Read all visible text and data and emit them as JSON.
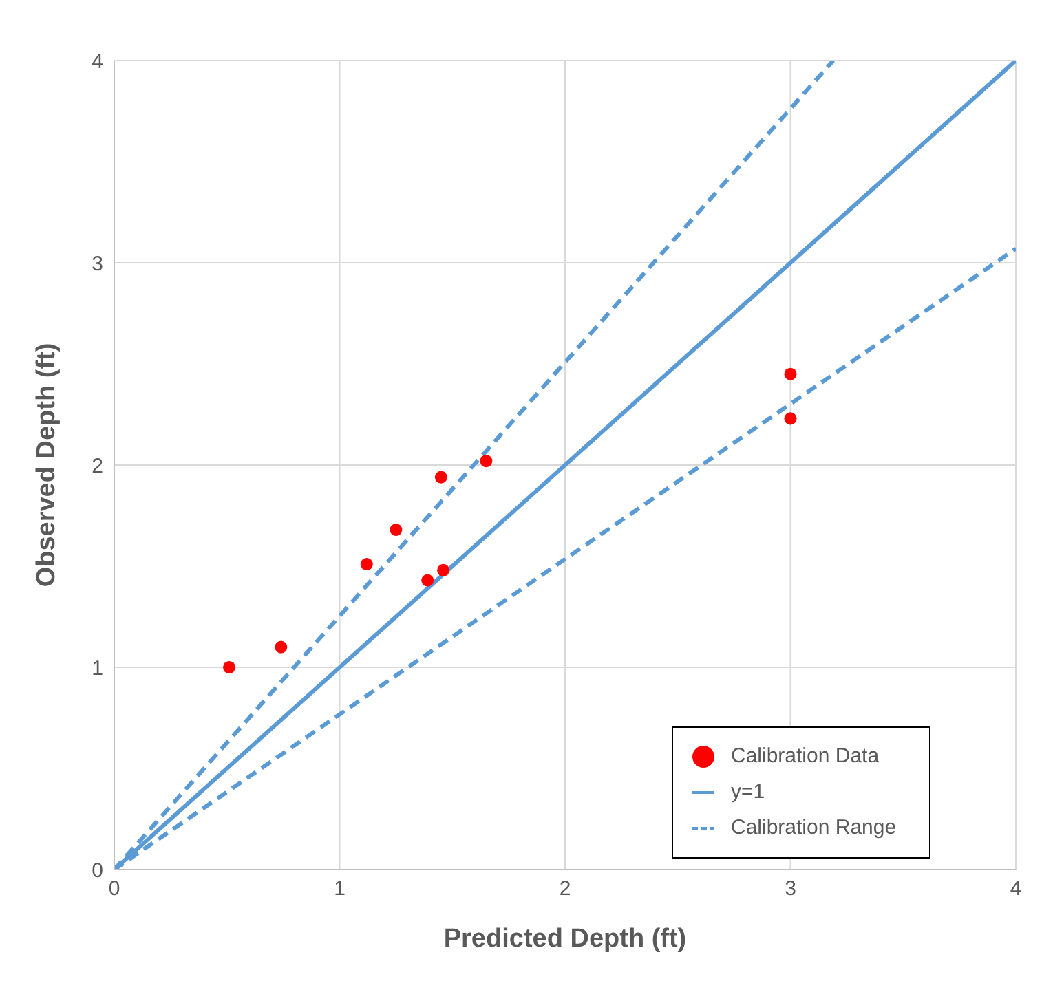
{
  "chart_data": {
    "type": "scatter",
    "xlabel": "Predicted Depth (ft)",
    "ylabel": "Observed  Depth (ft)",
    "xlim": [
      0,
      4
    ],
    "ylim": [
      0,
      4
    ],
    "xticks": [
      0,
      1,
      2,
      3,
      4
    ],
    "yticks": [
      0,
      1,
      2,
      3,
      4
    ],
    "grid": true,
    "legend": "bottom right",
    "series": [
      {
        "name": "Calibration Data",
        "color": "#ff0000",
        "marker": "circle",
        "x": [
          0.51,
          0.74,
          1.12,
          1.25,
          1.39,
          1.46,
          1.45,
          1.65,
          3.0,
          3.0
        ],
        "values": [
          1.0,
          1.1,
          1.51,
          1.68,
          1.43,
          1.48,
          1.94,
          2.02,
          2.45,
          2.23
        ]
      },
      {
        "name": "y=1",
        "type": "line",
        "color": "#5b9bd5",
        "marker": "none",
        "line_style": "solid",
        "x": [
          0,
          4
        ],
        "values": [
          0,
          4
        ]
      },
      {
        "name": "Calibration Range",
        "type": "line",
        "color": "#5b9bd5",
        "marker": "none",
        "line_style": "dashed",
        "x": [
          0,
          3.19
        ],
        "values": [
          0,
          4
        ]
      },
      {
        "type": "line",
        "color": "#5b9bd5",
        "marker": "none",
        "line_style": "dashed",
        "x": [
          0,
          4
        ],
        "values": [
          0,
          3.07
        ]
      }
    ]
  }
}
